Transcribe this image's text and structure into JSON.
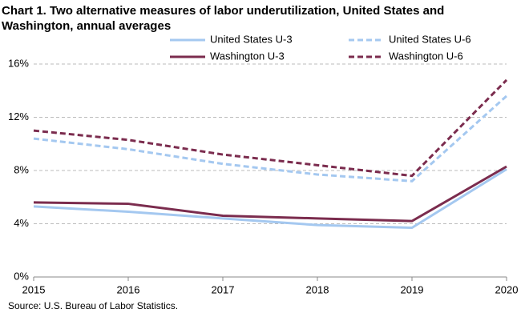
{
  "chart_data": {
    "type": "line",
    "title": [
      "Chart 1. Two alternative measures of labor underutilization, United States and",
      "Washington, annual averages"
    ],
    "x": [
      2015,
      2016,
      2017,
      2018,
      2019,
      2020
    ],
    "xlim": [
      2015,
      2020
    ],
    "xticks": [
      2015,
      2016,
      2017,
      2018,
      2019,
      2020
    ],
    "ylim": [
      0,
      16
    ],
    "yticks": [
      {
        "value": 0,
        "label": "0%"
      },
      {
        "value": 4,
        "label": "4%"
      },
      {
        "value": 8,
        "label": "8%"
      },
      {
        "value": 12,
        "label": "12%"
      },
      {
        "value": 16,
        "label": "16%"
      }
    ],
    "grid": true,
    "series": [
      {
        "name": "United States U-3",
        "color": "#a4c8f0",
        "dashed": false,
        "values": [
          5.3,
          4.9,
          4.4,
          3.9,
          3.7,
          8.1
        ]
      },
      {
        "name": "United States U-6",
        "color": "#a4c8f0",
        "dashed": true,
        "values": [
          10.4,
          9.6,
          8.5,
          7.7,
          7.2,
          13.6
        ]
      },
      {
        "name": "Washington U-3",
        "color": "#7b2c4e",
        "dashed": false,
        "values": [
          5.6,
          5.5,
          4.6,
          4.4,
          4.2,
          8.3
        ]
      },
      {
        "name": "Washington U-6",
        "color": "#7b2c4e",
        "dashed": true,
        "values": [
          11.0,
          10.3,
          9.2,
          8.4,
          7.6,
          14.8
        ]
      }
    ],
    "source": "Source: U.S. Bureau of Labor Statistics."
  }
}
